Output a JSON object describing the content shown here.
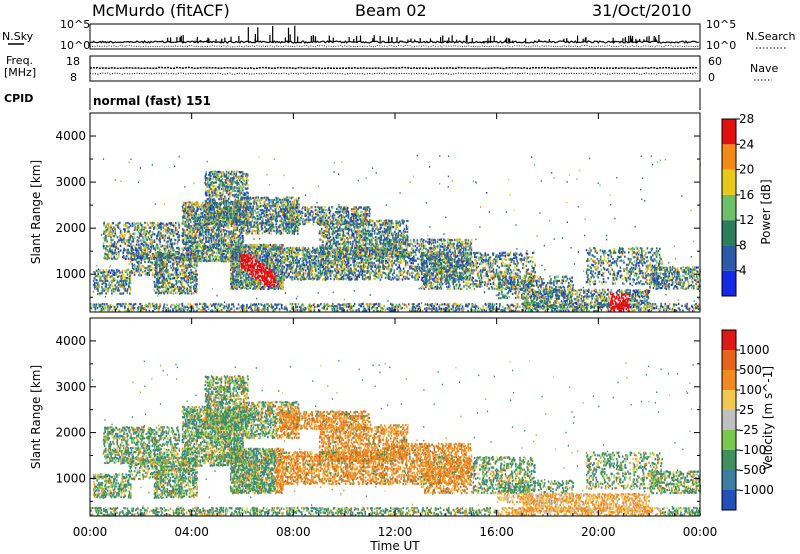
{
  "header": {
    "site": "McMurdo (fitACF)",
    "beam": "Beam 02",
    "date": "31/Oct/2010"
  },
  "noise_panel": {
    "left_label": "N.Sky",
    "right_label": "N.Search",
    "left_ticks": [
      "10^5",
      "10^0"
    ],
    "right_ticks": [
      "10^5",
      "10^0"
    ]
  },
  "freq_panel": {
    "left_label_1": "Freq.",
    "left_label_2": "[MHz]",
    "right_label": "Nave",
    "left_ticks": [
      "18",
      "8"
    ],
    "right_ticks": [
      "60",
      "0"
    ]
  },
  "cpid": {
    "label": "CPID",
    "value": "normal (fast) 151"
  },
  "chart_data": [
    {
      "type": "heatmap",
      "name": "power",
      "ylabel": "Slant Range [km]",
      "yticks": [
        "1000",
        "2000",
        "3000",
        "4000"
      ],
      "ylim": [
        180,
        4500
      ],
      "colorbar_label": "Power [dB]",
      "colorbar_ticks": [
        "4",
        "8",
        "12",
        "16",
        "20",
        "24",
        "28"
      ],
      "colorbar_colors": [
        "#1428e6",
        "#2c5aa8",
        "#2e7d5a",
        "#6cc06a",
        "#e8c818",
        "#f28a14",
        "#e01010"
      ],
      "colorbar_range": [
        0,
        32
      ]
    },
    {
      "type": "heatmap",
      "name": "velocity",
      "ylabel": "Slant Range [km]",
      "yticks": [
        "1000",
        "2000",
        "3000",
        "4000"
      ],
      "ylim": [
        180,
        4500
      ],
      "colorbar_label": "Velocity [m s^-1]",
      "colorbar_ticks": [
        "1000",
        "500",
        "100",
        "25",
        "-25",
        "-100",
        "-500",
        "-1000"
      ],
      "colorbar_colors": [
        "#2050b8",
        "#3a7fa0",
        "#3f8f5f",
        "#7bc850",
        "#c0c0c0",
        "#f0c850",
        "#f08a1e",
        "#e8641a",
        "#e01818"
      ]
    }
  ],
  "x_axis": {
    "ticks": [
      "00:00",
      "04:00",
      "08:00",
      "12:00",
      "16:00",
      "20:00",
      "00:00"
    ],
    "label": "Time UT"
  }
}
